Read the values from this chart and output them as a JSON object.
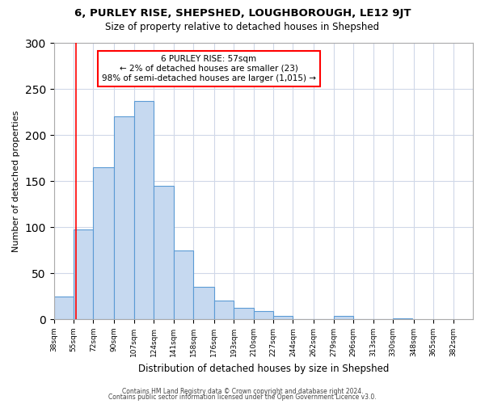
{
  "title": "6, PURLEY RISE, SHEPSHED, LOUGHBOROUGH, LE12 9JT",
  "subtitle": "Size of property relative to detached houses in Shepshed",
  "xlabel": "Distribution of detached houses by size in Shepshed",
  "ylabel": "Number of detached properties",
  "bar_color": "#c6d9f0",
  "bar_edge_color": "#5b9bd5",
  "bar_heights": [
    25,
    97,
    165,
    220,
    237,
    145,
    75,
    35,
    20,
    12,
    9,
    4,
    0,
    0,
    4,
    0,
    0,
    1
  ],
  "bar_lefts": [
    38,
    55,
    72,
    90,
    107,
    124,
    141,
    158,
    176,
    193,
    210,
    227,
    244,
    262,
    279,
    296,
    313,
    330
  ],
  "bar_widths": [
    17,
    17,
    18,
    17,
    17,
    17,
    17,
    18,
    17,
    17,
    17,
    17,
    18,
    17,
    17,
    17,
    17,
    17
  ],
  "x_tick_positions": [
    38,
    55,
    72,
    90,
    107,
    124,
    141,
    158,
    176,
    193,
    210,
    227,
    244,
    262,
    279,
    296,
    313,
    330,
    348,
    365,
    382
  ],
  "x_tick_labels": [
    "38sqm",
    "55sqm",
    "72sqm",
    "90sqm",
    "107sqm",
    "124sqm",
    "141sqm",
    "158sqm",
    "176sqm",
    "193sqm",
    "210sqm",
    "227sqm",
    "244sqm",
    "262sqm",
    "279sqm",
    "296sqm",
    "313sqm",
    "330sqm",
    "348sqm",
    "365sqm",
    "382sqm"
  ],
  "xlim": [
    38,
    399
  ],
  "ylim": [
    0,
    300
  ],
  "yticks": [
    0,
    50,
    100,
    150,
    200,
    250,
    300
  ],
  "red_line_x": 57,
  "annotation_line1": "6 PURLEY RISE: 57sqm",
  "annotation_line2": "← 2% of detached houses are smaller (23)",
  "annotation_line3": "98% of semi-detached houses are larger (1,015) →",
  "footer_line1": "Contains HM Land Registry data © Crown copyright and database right 2024.",
  "footer_line2": "Contains public sector information licensed under the Open Government Licence v3.0.",
  "background_color": "#ffffff",
  "grid_color": "#d0d8e8"
}
